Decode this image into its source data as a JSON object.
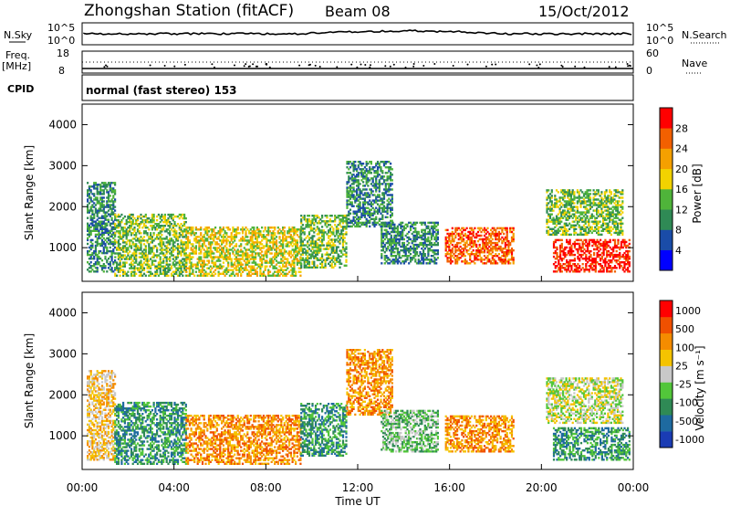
{
  "header": {
    "title": "Zhongshan Station (fitACF)",
    "beam": "Beam 08",
    "date": "15/Oct/2012"
  },
  "status_panels": {
    "nsky_label": "N.Sky",
    "nsky_ticks": [
      "10^5",
      "10^0"
    ],
    "nsearch_label": "N.Search",
    "nsearch_ticks": [
      "10^5",
      "10^0"
    ],
    "freq_label": "Freq.",
    "freq_unit": "[MHz]",
    "freq_ticks": [
      "18",
      "8"
    ],
    "nave_label": "Nave",
    "nave_ticks": [
      "60",
      "0"
    ],
    "cpid_label": "CPID",
    "cpid_text": "normal (fast stereo) 153"
  },
  "chart_data": [
    {
      "type": "heatmap",
      "parameter": "power",
      "ylabel": "Slant Range [km]",
      "xlabel": "Time UT",
      "xlim_hours": [
        0,
        24
      ],
      "ylim": [
        180,
        4500
      ],
      "yticks": [
        "4000",
        "3000",
        "2000",
        "1000"
      ],
      "colorbar": {
        "label": "Power [dB]",
        "ticks": [
          "28",
          "24",
          "20",
          "16",
          "12",
          "8",
          "4"
        ],
        "colors": [
          "#0000ff",
          "#1a4ca8",
          "#2f8a55",
          "#4fb43a",
          "#f2d200",
          "#f5a000",
          "#f26000",
          "#ff0000"
        ]
      },
      "echo_regions": [
        {
          "t": [
            0.2,
            1.4
          ],
          "r": [
            400,
            2600
          ],
          "level": 2
        },
        {
          "t": [
            1.4,
            4.5
          ],
          "r": [
            300,
            1800
          ],
          "level": 3
        },
        {
          "t": [
            4.5,
            9.5
          ],
          "r": [
            300,
            1500
          ],
          "level": 4
        },
        {
          "t": [
            9.5,
            11.5
          ],
          "r": [
            500,
            1800
          ],
          "level": 3
        },
        {
          "t": [
            11.5,
            13.5
          ],
          "r": [
            1500,
            3100
          ],
          "level": 2
        },
        {
          "t": [
            13.0,
            15.5
          ],
          "r": [
            600,
            1600
          ],
          "level": 2
        },
        {
          "t": [
            15.8,
            18.8
          ],
          "r": [
            600,
            1500
          ],
          "level": 6
        },
        {
          "t": [
            20.5,
            23.8
          ],
          "r": [
            400,
            1200
          ],
          "level": 7
        },
        {
          "t": [
            20.2,
            23.5
          ],
          "r": [
            1300,
            2400
          ],
          "level": 3
        }
      ]
    },
    {
      "type": "heatmap",
      "parameter": "velocity",
      "ylabel": "Slant Range [km]",
      "xlabel": "Time UT",
      "xlim_hours": [
        0,
        24
      ],
      "ylim": [
        180,
        4500
      ],
      "yticks": [
        "4000",
        "3000",
        "2000",
        "1000"
      ],
      "xticks": [
        "00:00",
        "04:00",
        "08:00",
        "12:00",
        "16:00",
        "20:00",
        "00:00"
      ],
      "colorbar": {
        "label": "Velocity [m s⁻¹]",
        "ticks": [
          "1000",
          "500",
          "100",
          "25",
          "-25",
          "-100",
          "-500",
          "-1000"
        ],
        "colors": [
          "#1a3cb4",
          "#1e6aa0",
          "#2f8a55",
          "#52c63a",
          "#c8c8c8",
          "#f5c300",
          "#f58c00",
          "#f05000",
          "#ff0000"
        ]
      },
      "echo_regions": [
        {
          "t": [
            0.2,
            1.4
          ],
          "r": [
            400,
            2600
          ],
          "level": 5
        },
        {
          "t": [
            1.4,
            4.5
          ],
          "r": [
            300,
            1800
          ],
          "level": 2
        },
        {
          "t": [
            4.5,
            9.5
          ],
          "r": [
            300,
            1500
          ],
          "level": 6
        },
        {
          "t": [
            9.5,
            11.5
          ],
          "r": [
            500,
            1800
          ],
          "level": 2
        },
        {
          "t": [
            11.5,
            13.5
          ],
          "r": [
            1500,
            3100
          ],
          "level": 6
        },
        {
          "t": [
            13.0,
            15.5
          ],
          "r": [
            600,
            1600
          ],
          "level": 3
        },
        {
          "t": [
            15.8,
            18.8
          ],
          "r": [
            600,
            1500
          ],
          "level": 6
        },
        {
          "t": [
            20.5,
            23.8
          ],
          "r": [
            400,
            1200
          ],
          "level": 2
        },
        {
          "t": [
            20.2,
            23.5
          ],
          "r": [
            1300,
            2400
          ],
          "level": 4
        }
      ]
    }
  ]
}
